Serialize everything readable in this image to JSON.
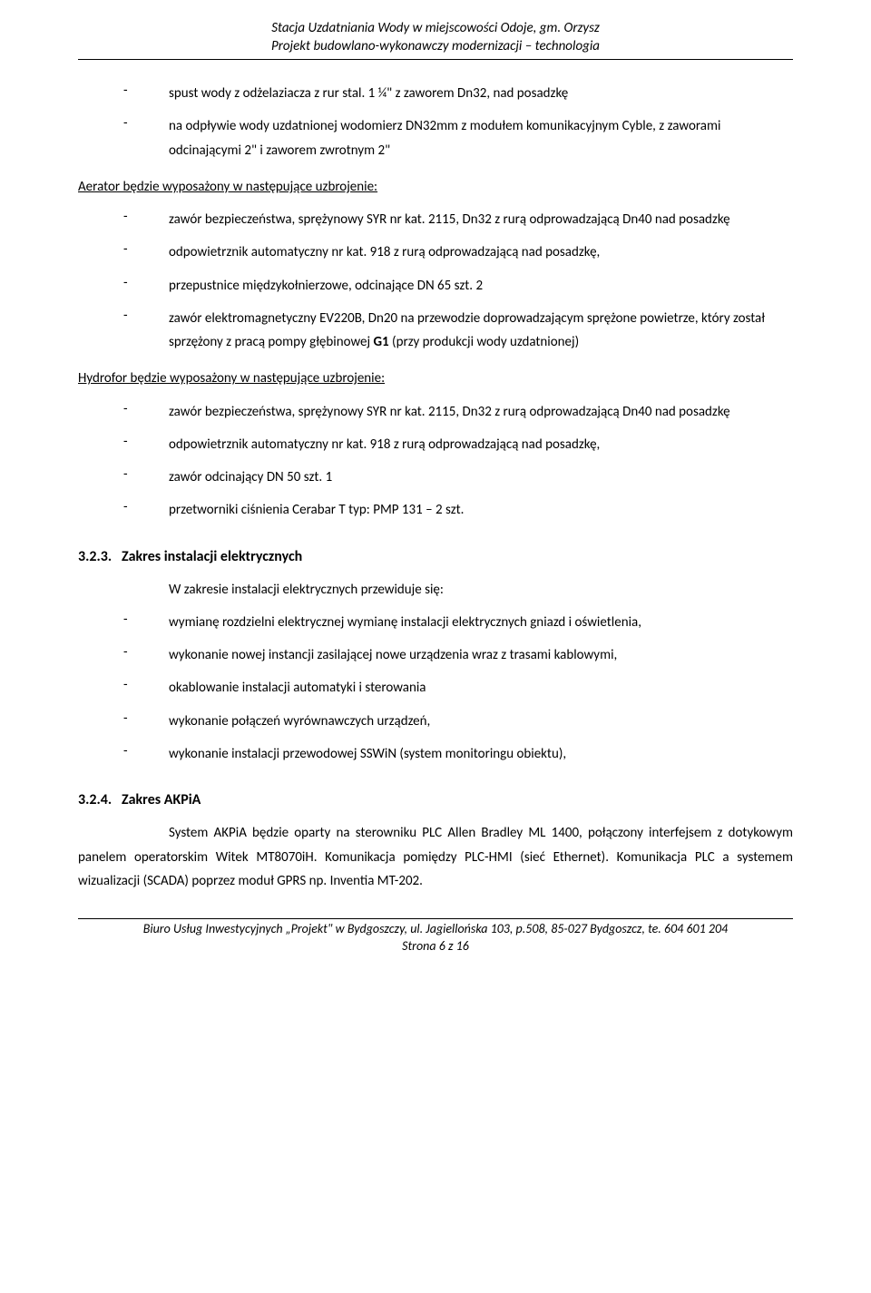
{
  "header": {
    "line1": "Stacja Uzdatniania Wody w miejscowości Odoje, gm. Orzysz",
    "line2": "Projekt budowlano-wykonawczy modernizacji – technologia"
  },
  "content": {
    "bullets_top": [
      "spust wody z odżelaziacza z rur stal. 1 ¼\" z zaworem Dn32, nad posadzkę",
      "na odpływie wody uzdatnionej wodomierz DN32mm z modułem komunikacyjnym Cyble, z zaworami odcinającymi 2\" i zaworem zwrotnym 2\""
    ],
    "aerator_intro": "Aerator będzie wyposażony w następujące uzbrojenie:",
    "aerator_bullets": [
      "zawór bezpieczeństwa, sprężynowy SYR nr kat. 2115, Dn32 z rurą odprowadzającą  Dn40 nad posadzkę",
      "odpowietrznik automatyczny nr kat. 918 z rurą odprowadzającą nad posadzkę,",
      "przepustnice międzykołnierzowe, odcinające DN 65 szt. 2",
      "zawór elektromagnetyczny EV220B, Dn20 na przewodzie doprowadzającym sprężone powietrze, który został sprzężony z pracą pompy głębinowej "
    ],
    "aerator_last_bold": "G1",
    "aerator_last_tail": " (przy produkcji wody uzdatnionej)",
    "hydrofor_intro": "Hydrofor będzie wyposażony w następujące uzbrojenie:",
    "hydrofor_bullets": [
      "zawór bezpieczeństwa, sprężynowy SYR nr kat. 2115, Dn32 z rurą odprowadzającą  Dn40 nad posadzkę",
      "odpowietrznik automatyczny nr kat. 918 z rurą odprowadzającą nad posadzkę,",
      "zawór odcinający DN 50 szt. 1",
      "przetworniki ciśnienia  Cerabar T typ: PMP 131 – 2 szt."
    ],
    "s323_num": "3.2.3.",
    "s323_title": "Zakres instalacji elektrycznych",
    "s323_intro": "W zakresie instalacji elektrycznych przewiduje się:",
    "s323_bullets": [
      "wymianę rozdzielni elektrycznej wymianę instalacji elektrycznych gniazd i oświetlenia,",
      "wykonanie nowej instancji zasilającej nowe urządzenia wraz z trasami kablowymi,",
      "okablowanie instalacji automatyki i sterowania",
      "wykonanie połączeń wyrównawczych urządzeń,",
      "wykonanie instalacji przewodowej SSWiN (system monitoringu obiektu),"
    ],
    "s324_num": "3.2.4.",
    "s324_title": "Zakres AKPiA",
    "s324_body": "System AKPiA  będzie oparty na sterowniku PLC Allen Bradley ML 1400, połączony interfejsem z dotykowym panelem operatorskim Witek MT8070iH. Komunikacja pomiędzy PLC-HMI (sieć Ethernet). Komunikacja PLC a systemem wizualizacji (SCADA) poprzez moduł GPRS np. Inventia MT-202."
  },
  "footer": {
    "line1": "Biuro Usług Inwestycyjnych „Projekt\" w Bydgoszczy, ul. Jagiellońska 103, p.508, 85-027 Bydgoszcz, te. 604 601 204",
    "line2": "Strona 6 z 16"
  }
}
